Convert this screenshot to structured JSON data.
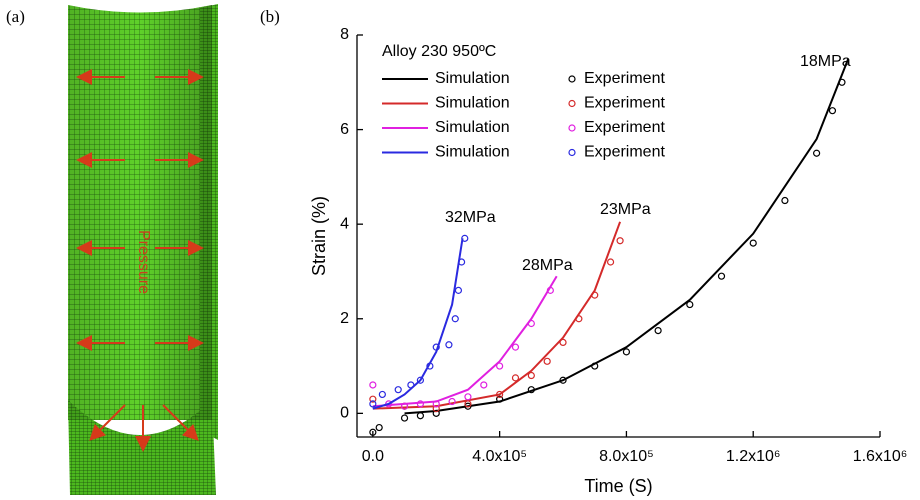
{
  "figure": {
    "panel_a_label": "(a)",
    "panel_b_label": "(b)",
    "pressure_label": "Pressure"
  },
  "chart_data": {
    "type": "line",
    "title": "Alloy 230 950ºC",
    "x_label": "Time (S)",
    "y_label": "Strain (%)",
    "xlim": [
      -50000,
      1600000
    ],
    "xticks": [
      {
        "value": 0,
        "label": "0.0"
      },
      {
        "value": 400000,
        "label": "4.0x10⁵"
      },
      {
        "value": 800000,
        "label": "8.0x10⁵"
      },
      {
        "value": 1200000,
        "label": "1.2x10⁶"
      },
      {
        "value": 1600000,
        "label": "1.6x10⁶"
      }
    ],
    "ylim": [
      -0.5,
      8
    ],
    "yticks": [
      0,
      2,
      4,
      6,
      8
    ],
    "annotations": [
      "18MPa",
      "23MPa",
      "28MPa",
      "32MPa"
    ],
    "series": [
      {
        "name": "Simulation",
        "kind": "line",
        "color": "#000000",
        "x": [
          100000,
          200000,
          400000,
          600000,
          800000,
          1000000,
          1200000,
          1400000,
          1500000
        ],
        "values": [
          0,
          0.05,
          0.25,
          0.7,
          1.4,
          2.4,
          3.8,
          5.8,
          7.5
        ]
      },
      {
        "name": "Experiment",
        "kind": "scatter",
        "color": "#000000",
        "x": [
          0,
          20000,
          100000,
          150000,
          200000,
          300000,
          400000,
          500000,
          600000,
          700000,
          800000,
          900000,
          1000000,
          1100000,
          1200000,
          1300000,
          1400000,
          1450000,
          1480000
        ],
        "values": [
          -0.4,
          -0.3,
          -0.1,
          -0.05,
          0,
          0.15,
          0.3,
          0.5,
          0.7,
          1.0,
          1.3,
          1.75,
          2.3,
          2.9,
          3.6,
          4.5,
          5.5,
          6.4,
          7.0
        ]
      },
      {
        "name": "Simulation",
        "kind": "line",
        "color": "#d42a2a",
        "x": [
          0,
          200000,
          400000,
          500000,
          600000,
          700000,
          780000
        ],
        "values": [
          0.1,
          0.15,
          0.4,
          0.9,
          1.6,
          2.6,
          4.05
        ]
      },
      {
        "name": "Experiment",
        "kind": "scatter",
        "color": "#d42a2a",
        "x": [
          0,
          100000,
          200000,
          300000,
          400000,
          450000,
          500000,
          550000,
          600000,
          650000,
          700000,
          750000,
          780000
        ],
        "values": [
          0.3,
          0.15,
          0.1,
          0.2,
          0.4,
          0.75,
          0.8,
          1.1,
          1.5,
          2.0,
          2.5,
          3.2,
          3.65
        ]
      },
      {
        "name": "Simulation",
        "kind": "line",
        "color": "#e020e0",
        "x": [
          0,
          100000,
          200000,
          300000,
          400000,
          500000,
          580000
        ],
        "values": [
          0.15,
          0.2,
          0.25,
          0.5,
          1.1,
          2.0,
          2.9
        ]
      },
      {
        "name": "Experiment",
        "kind": "scatter",
        "color": "#e020e0",
        "x": [
          0,
          50000,
          100000,
          150000,
          200000,
          250000,
          300000,
          350000,
          400000,
          450000,
          500000,
          560000
        ],
        "values": [
          0.6,
          0.2,
          0.15,
          0.2,
          0.2,
          0.25,
          0.35,
          0.6,
          1.0,
          1.4,
          1.9,
          2.6
        ]
      },
      {
        "name": "Simulation",
        "kind": "line",
        "color": "#2a2ae0",
        "x": [
          0,
          50000,
          100000,
          150000,
          200000,
          250000,
          283000
        ],
        "values": [
          0.1,
          0.2,
          0.4,
          0.7,
          1.3,
          2.3,
          3.7
        ]
      },
      {
        "name": "Experiment",
        "kind": "scatter",
        "color": "#2a2ae0",
        "x": [
          0,
          30000,
          80000,
          120000,
          150000,
          180000,
          200000,
          240000,
          260000,
          270000,
          280000,
          290000
        ],
        "values": [
          0.2,
          0.4,
          0.5,
          0.6,
          0.7,
          1.0,
          1.4,
          1.45,
          2.0,
          2.6,
          3.2,
          3.7
        ]
      }
    ]
  }
}
